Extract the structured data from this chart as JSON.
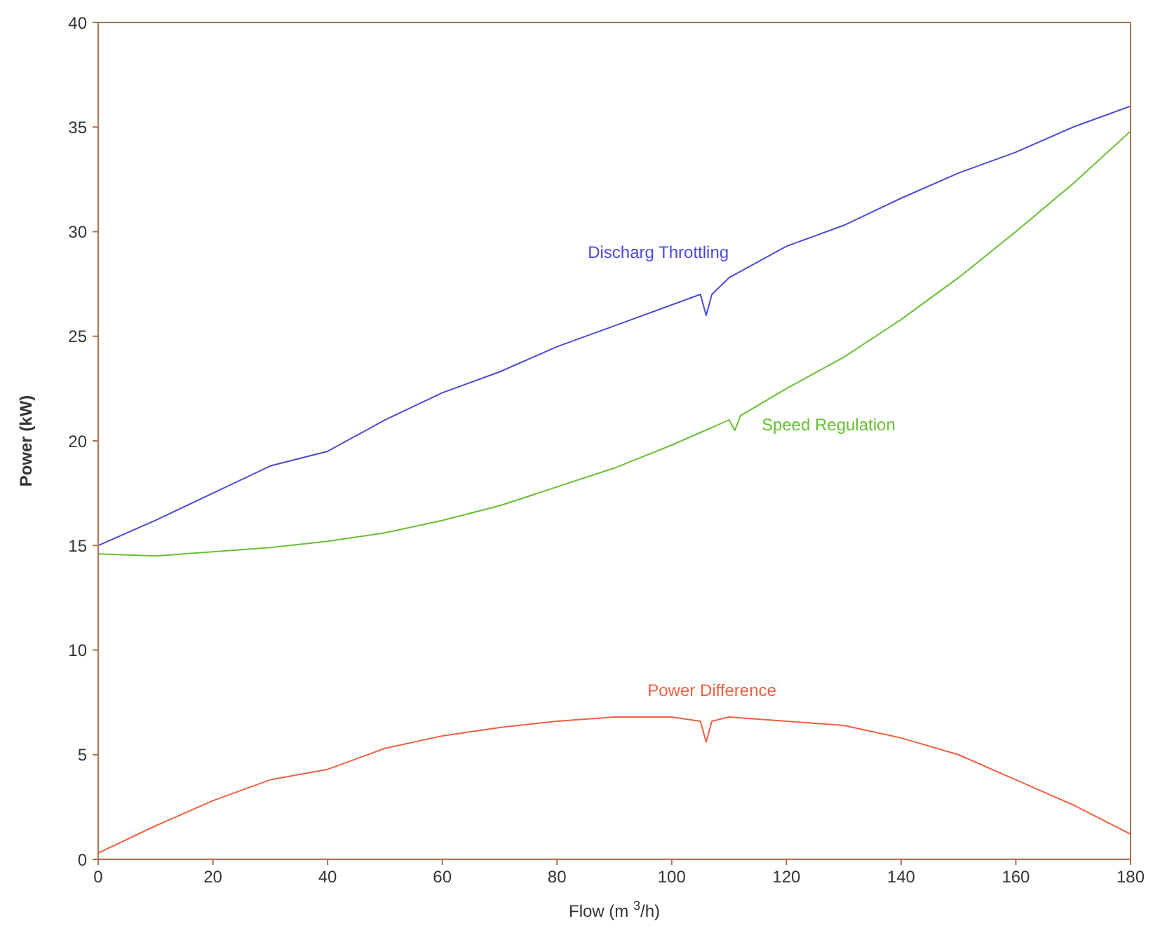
{
  "chart_data": {
    "type": "line",
    "xlabel": "Flow (m $^{3}$/h)",
    "ylabel": "Power (kW)",
    "xlim": [
      0,
      180
    ],
    "ylim": [
      0,
      40
    ],
    "xticks": [
      0,
      20,
      40,
      60,
      80,
      100,
      120,
      140,
      160,
      180
    ],
    "yticks": [
      0,
      5,
      10,
      15,
      20,
      25,
      30,
      35,
      40
    ],
    "legend": false,
    "marker": "none",
    "line_style": "solid",
    "series": [
      {
        "name": "Discharg Throttling",
        "color": "#4a4ad8",
        "x": [
          0,
          10,
          20,
          30,
          40,
          50,
          60,
          70,
          80,
          90,
          100,
          105,
          106,
          107,
          110,
          120,
          130,
          140,
          150,
          160,
          170,
          180
        ],
        "values": [
          15.0,
          16.2,
          17.5,
          18.8,
          19.5,
          21,
          22.3,
          23.3,
          24.5,
          25.5,
          26.5,
          27,
          26,
          27,
          27.8,
          29.3,
          30.3,
          31.6,
          32.8,
          33.8,
          35,
          36
        ]
      },
      {
        "name": "Speed Regulation",
        "color": "#66c033",
        "x": [
          0,
          10,
          20,
          30,
          40,
          50,
          60,
          70,
          80,
          90,
          100,
          110,
          111,
          112,
          120,
          130,
          140,
          150,
          160,
          170,
          180
        ],
        "values": [
          14.6,
          14.5,
          14.7,
          14.9,
          15.2,
          15.6,
          16.2,
          16.9,
          17.8,
          18.7,
          19.8,
          21,
          20.5,
          21.2,
          22.5,
          24,
          25.8,
          27.8,
          30,
          32.3,
          34.8
        ]
      },
      {
        "name": "Power Difference",
        "color": "#f06040",
        "x": [
          0,
          10,
          20,
          30,
          40,
          50,
          60,
          70,
          80,
          90,
          100,
          105,
          106,
          107,
          110,
          120,
          130,
          140,
          150,
          160,
          170,
          180
        ],
        "values": [
          0.3,
          1.6,
          2.8,
          3.8,
          4.3,
          5.3,
          5.9,
          6.3,
          6.6,
          6.8,
          6.8,
          6.6,
          5.6,
          6.6,
          6.8,
          6.6,
          6.4,
          5.8,
          5,
          3.8,
          2.6,
          1.2
        ]
      }
    ]
  }
}
